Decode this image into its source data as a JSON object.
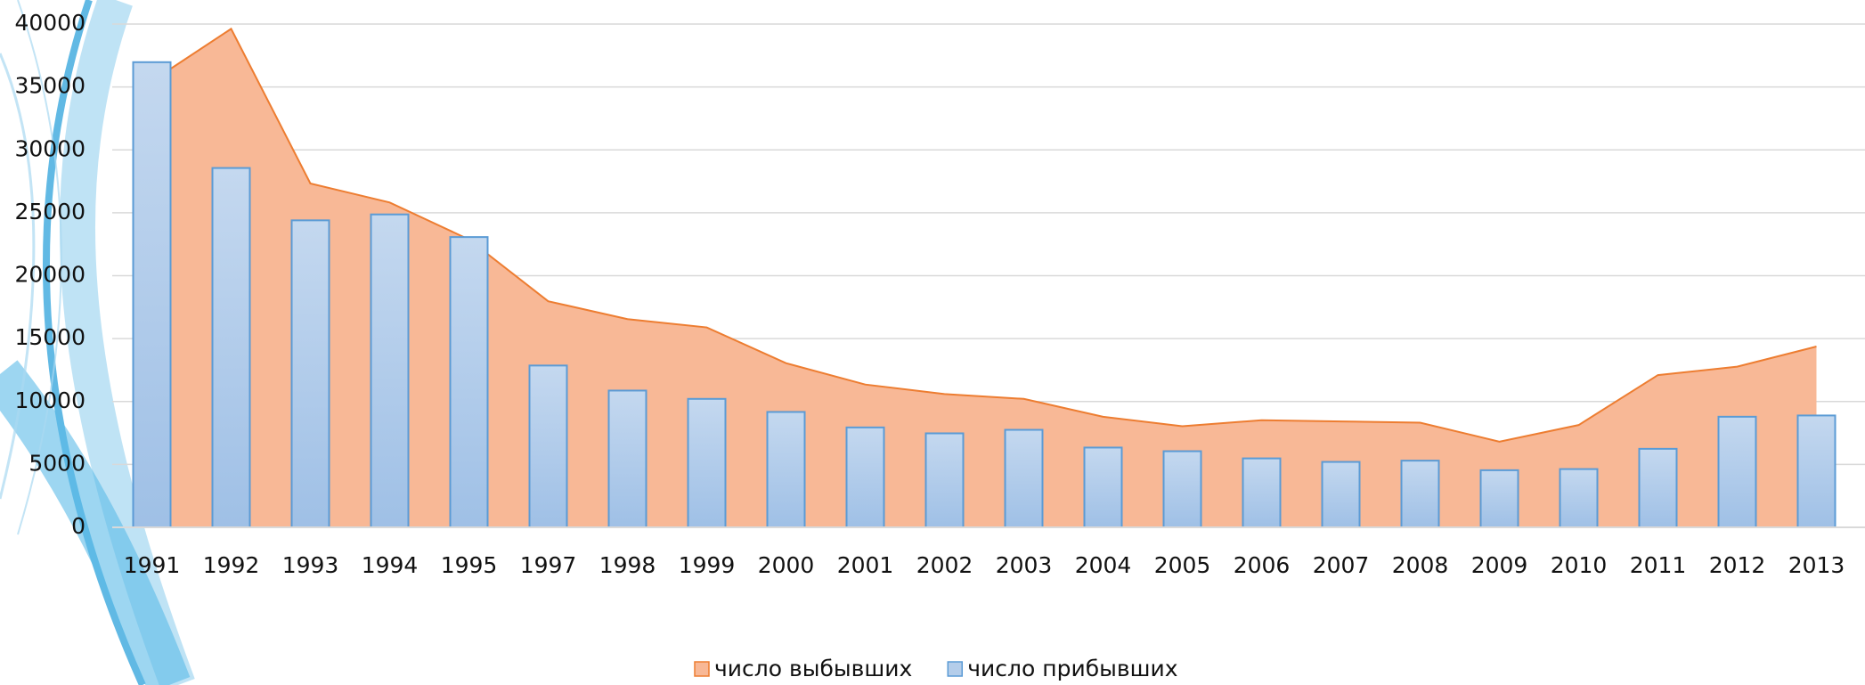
{
  "chart_data": {
    "type": "area-bar",
    "categories": [
      "1991",
      "1992",
      "1993",
      "1994",
      "1995",
      "1997",
      "1998",
      "1999",
      "2000",
      "2001",
      "2002",
      "2003",
      "2004",
      "2005",
      "2006",
      "2007",
      "2008",
      "2009",
      "2010",
      "2011",
      "2012",
      "2013"
    ],
    "series": [
      {
        "name": "число выбывших",
        "type": "area",
        "color": "#ed7d31",
        "values": [
          35460,
          39620,
          27330,
          25820,
          22880,
          17970,
          16550,
          15890,
          13050,
          11350,
          10590,
          10210,
          8790,
          8040,
          8510,
          8420,
          8320,
          6810,
          8130,
          12100,
          12770,
          14370
        ]
      },
      {
        "name": "число прибывших",
        "type": "bar",
        "color": "#5b9bd5",
        "values": [
          36970,
          28560,
          24400,
          24870,
          23070,
          12860,
          10870,
          10210,
          9170,
          7940,
          7470,
          7750,
          6340,
          6050,
          5480,
          5200,
          5300,
          4540,
          4630,
          6240,
          8790,
          8890
        ]
      }
    ],
    "ylim": [
      0,
      40000
    ],
    "yticks": [
      0,
      5000,
      10000,
      15000,
      20000,
      25000,
      30000,
      35000,
      40000
    ],
    "grid": true,
    "legend": "bottom"
  }
}
